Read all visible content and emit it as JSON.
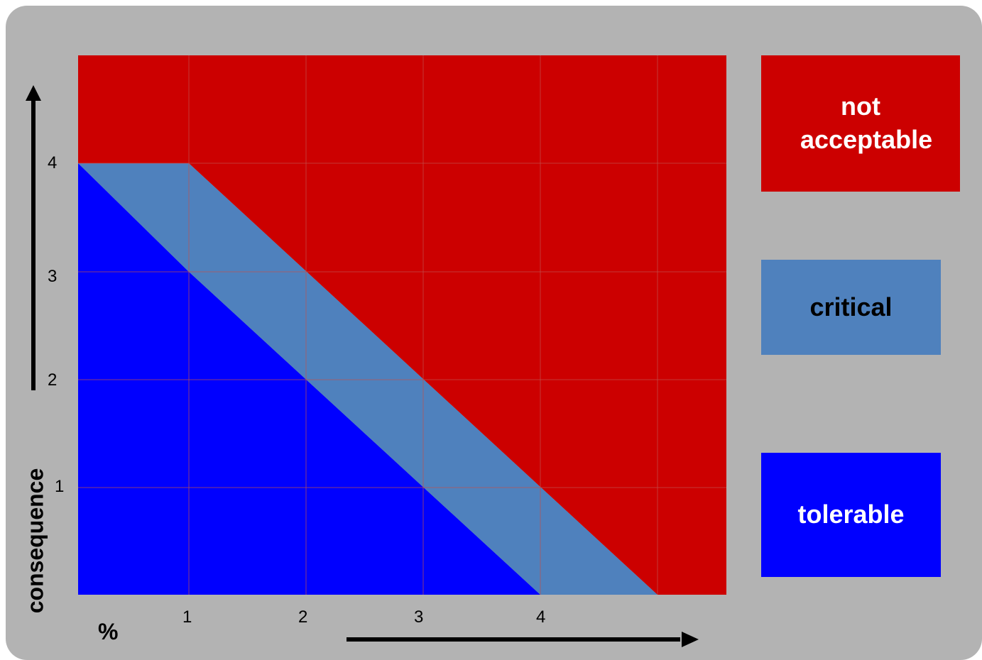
{
  "axes": {
    "y_label": "consequence",
    "x_label": "%",
    "x_ticks": [
      "1",
      "2",
      "3",
      "4"
    ],
    "y_ticks": [
      "1",
      "2",
      "3",
      "4"
    ]
  },
  "zones": [
    {
      "key": "tolerable",
      "color": "#0000ff",
      "polygon": [
        [
          0,
          0
        ],
        [
          0,
          4
        ],
        [
          1,
          3
        ],
        [
          4,
          0
        ]
      ]
    },
    {
      "key": "critical",
      "color": "#4f81bd",
      "polygon": [
        [
          0,
          4
        ],
        [
          1,
          4
        ],
        [
          5,
          0
        ],
        [
          4,
          0
        ],
        [
          1,
          3
        ]
      ]
    },
    {
      "key": "not_acceptable",
      "color": "#cc0000",
      "polygon": [
        [
          0,
          4
        ],
        [
          0,
          5
        ],
        [
          5.6,
          5
        ],
        [
          5.6,
          0
        ],
        [
          5,
          0
        ],
        [
          1,
          4
        ]
      ]
    }
  ],
  "legend": {
    "not_acceptable": {
      "label": "not acceptable",
      "color": "#cc0000",
      "text_color": "#ffffff"
    },
    "critical": {
      "label": "critical",
      "color": "#4f81bd",
      "text_color": "#000000"
    },
    "tolerable": {
      "label": "tolerable",
      "color": "#0000ff",
      "text_color": "#ffffff"
    }
  },
  "grid_color": "#c0504d"
}
